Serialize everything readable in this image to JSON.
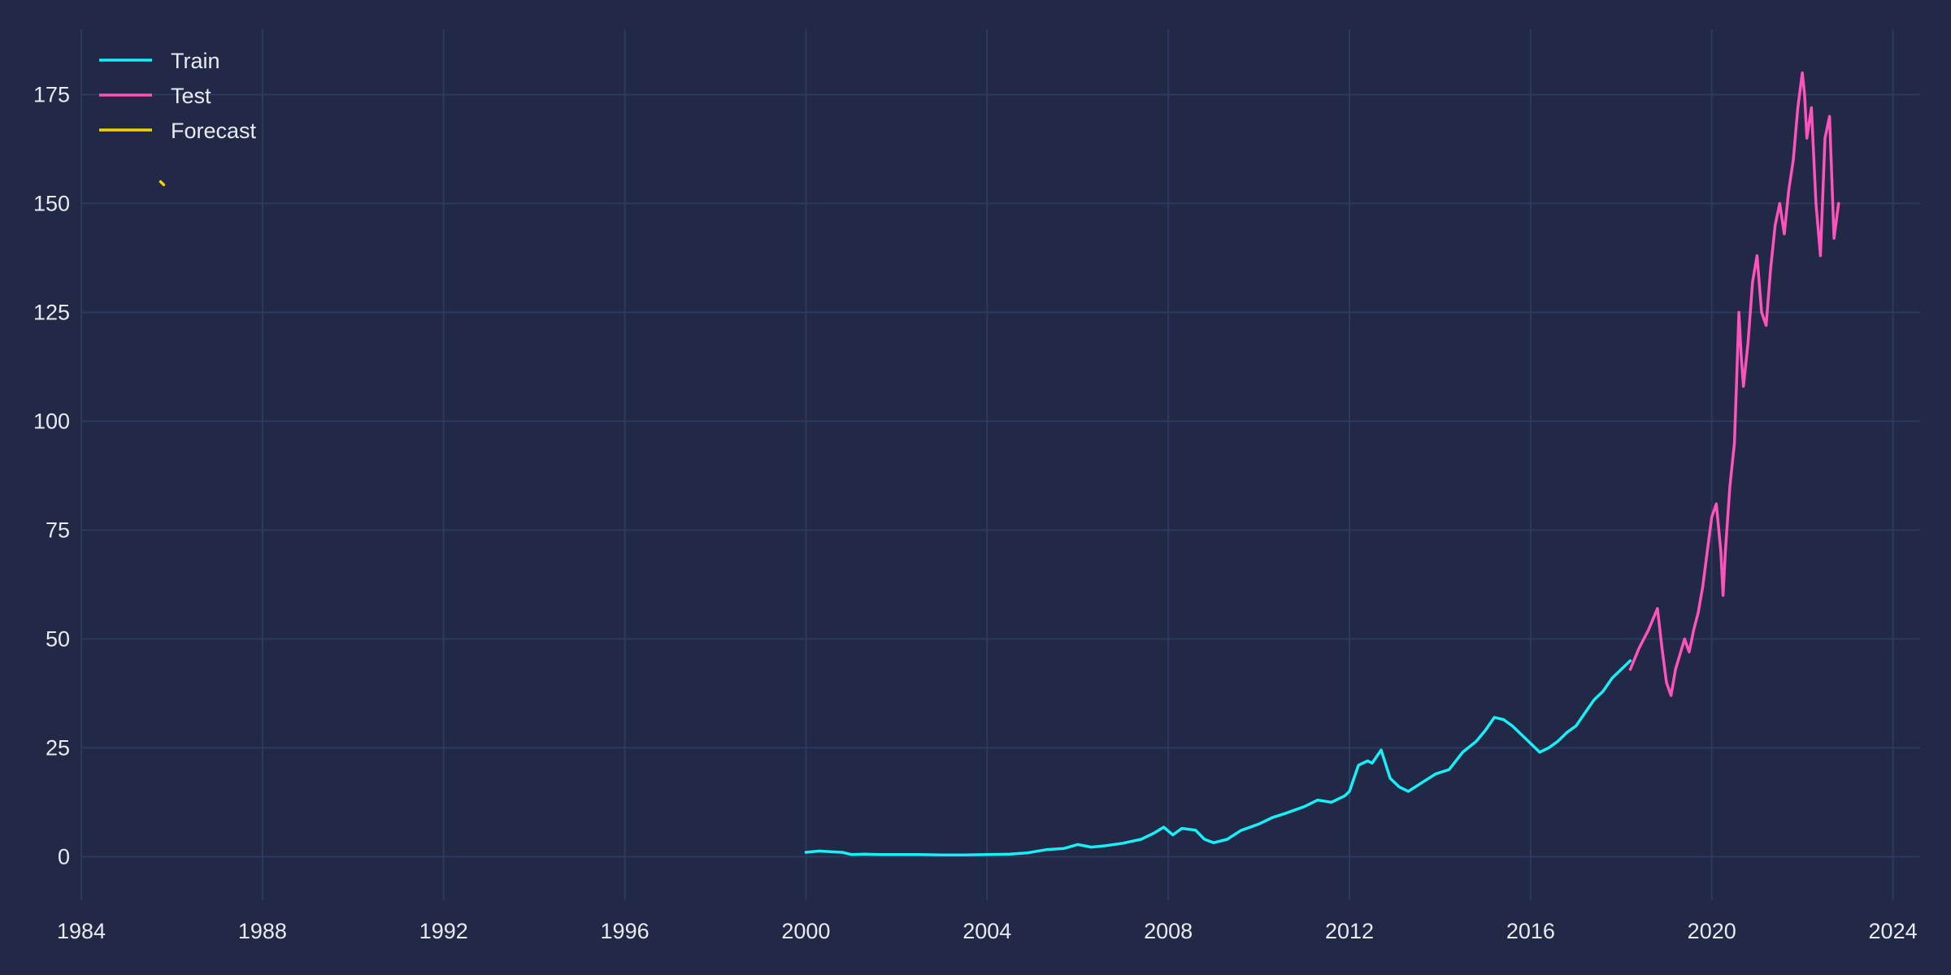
{
  "chart_data": {
    "type": "line",
    "title": "",
    "xlabel": "",
    "ylabel": "",
    "x_axis_type": "year",
    "xlim": [
      1984.0,
      2024.6
    ],
    "ylim": [
      -10,
      190
    ],
    "x_ticks": [
      1984,
      1988,
      1992,
      1996,
      2000,
      2004,
      2008,
      2012,
      2016,
      2020,
      2024
    ],
    "y_ticks": [
      0,
      25,
      50,
      75,
      100,
      125,
      150,
      175
    ],
    "x_tick_labels": [
      "1984",
      "1988",
      "1992",
      "1996",
      "2000",
      "2004",
      "2008",
      "2012",
      "2016",
      "2020",
      "2024"
    ],
    "y_tick_labels": [
      "0",
      "25",
      "50",
      "75",
      "100",
      "125",
      "150",
      "175"
    ],
    "grid": true,
    "legend_position": "top-left",
    "series": [
      {
        "name": "Train",
        "color": "#18f0f8",
        "x": [
          2000.0,
          2000.3,
          2000.6,
          2000.8,
          2001.0,
          2001.3,
          2001.6,
          2002.0,
          2002.5,
          2003.0,
          2003.5,
          2004.0,
          2004.5,
          2004.9,
          2005.3,
          2005.7,
          2006.0,
          2006.3,
          2006.6,
          2007.0,
          2007.4,
          2007.7,
          2007.9,
          2008.1,
          2008.3,
          2008.6,
          2008.8,
          2009.0,
          2009.3,
          2009.6,
          2010.0,
          2010.3,
          2010.6,
          2011.0,
          2011.3,
          2011.6,
          2011.9,
          2012.0,
          2012.2,
          2012.4,
          2012.5,
          2012.7,
          2012.9,
          2013.1,
          2013.3,
          2013.6,
          2013.9,
          2014.2,
          2014.5,
          2014.8,
          2015.0,
          2015.2,
          2015.4,
          2015.6,
          2015.8,
          2016.0,
          2016.2,
          2016.4,
          2016.6,
          2016.8,
          2017.0,
          2017.2,
          2017.4,
          2017.6,
          2017.8,
          2018.0,
          2018.2
        ],
        "y": [
          1.0,
          1.3,
          1.1,
          1.0,
          0.5,
          0.6,
          0.5,
          0.5,
          0.5,
          0.4,
          0.4,
          0.5,
          0.6,
          0.9,
          1.6,
          1.9,
          2.8,
          2.2,
          2.5,
          3.1,
          4.0,
          5.5,
          6.8,
          5.0,
          6.5,
          6.1,
          4.0,
          3.2,
          4.0,
          6.0,
          7.5,
          9.0,
          10.0,
          11.5,
          13.0,
          12.5,
          14.0,
          15.0,
          21.0,
          22.0,
          21.5,
          24.5,
          18.0,
          16.0,
          15.0,
          17.0,
          19.0,
          20.0,
          24.0,
          26.5,
          29.0,
          32.0,
          31.5,
          30.0,
          28.0,
          26.0,
          24.0,
          25.0,
          26.5,
          28.5,
          30.0,
          33.0,
          36.0,
          38.0,
          41.0,
          43.0,
          45.0
        ]
      },
      {
        "name": "Test",
        "color": "#fe53bb",
        "x": [
          2018.2,
          2018.4,
          2018.6,
          2018.8,
          2018.9,
          2019.0,
          2019.1,
          2019.2,
          2019.4,
          2019.5,
          2019.6,
          2019.7,
          2019.8,
          2019.9,
          2020.0,
          2020.1,
          2020.2,
          2020.25,
          2020.3,
          2020.4,
          2020.5,
          2020.55,
          2020.6,
          2020.65,
          2020.7,
          2020.8,
          2020.9,
          2021.0,
          2021.1,
          2021.2,
          2021.3,
          2021.4,
          2021.5,
          2021.6,
          2021.7,
          2021.8,
          2021.9,
          2022.0,
          2022.05,
          2022.1,
          2022.2,
          2022.3,
          2022.4,
          2022.5,
          2022.6,
          2022.7,
          2022.8
        ],
        "y": [
          43.0,
          48.0,
          52.0,
          57.0,
          48.0,
          40.0,
          37.0,
          43.0,
          50.0,
          47.0,
          52.0,
          56.0,
          62.0,
          70.0,
          78.0,
          81.0,
          70.0,
          60.0,
          70.0,
          85.0,
          95.0,
          110.0,
          125.0,
          115.0,
          108.0,
          118.0,
          132.0,
          138.0,
          125.0,
          122.0,
          135.0,
          145.0,
          150.0,
          143.0,
          153.0,
          160.0,
          172.0,
          180.0,
          175.0,
          165.0,
          172.0,
          150.0,
          138.0,
          165.0,
          170.0,
          142.0,
          150.0
        ]
      },
      {
        "name": "Forecast",
        "color": "#f5d300",
        "x": [
          1985.75,
          1985.82
        ],
        "y": [
          155.0,
          154.3
        ]
      }
    ]
  }
}
